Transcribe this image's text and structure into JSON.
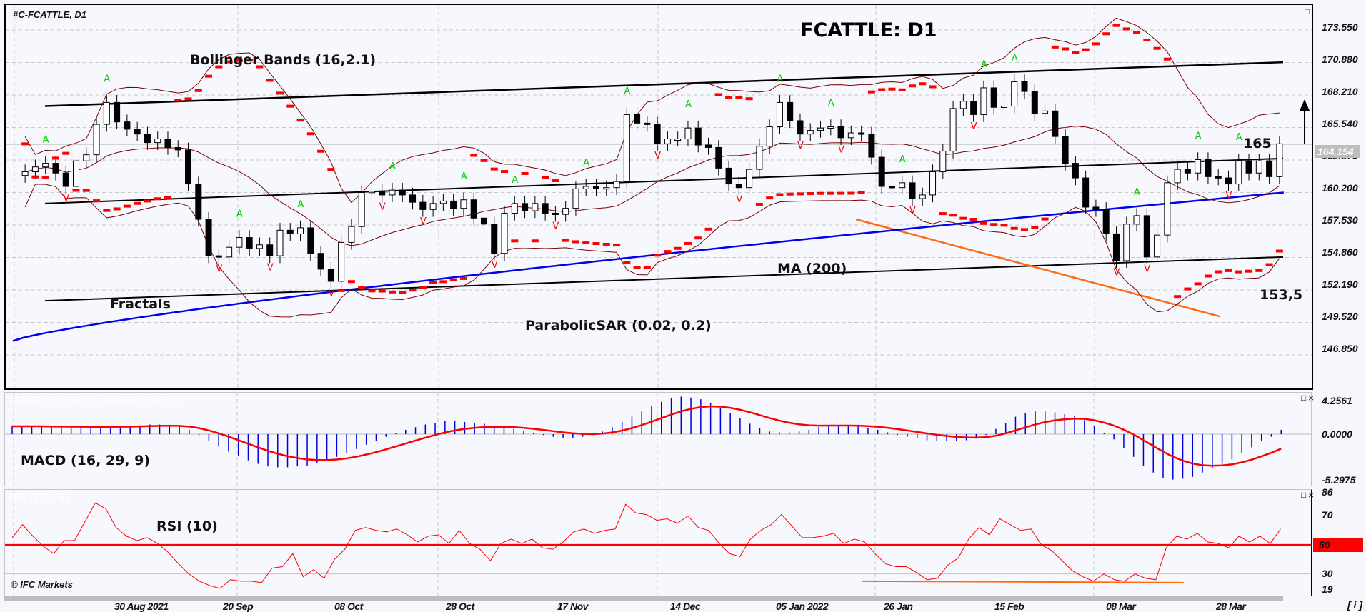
{
  "window": {
    "symbol_label": "#C-FCATTLE, D1",
    "chart_title": "FCATTLE: D1",
    "copyright": "© IFC Markets",
    "info_button": "[ i ]",
    "maximize_icon": "□",
    "close_icon": "×"
  },
  "annotations": {
    "bollinger": "Bollinger Bands (16,2.1)",
    "fractals": "Fractals",
    "parabolic_sar": "ParabolicSAR (0.02, 0.2)",
    "ma": "MA (200)",
    "target_up": "165",
    "support": "153,5",
    "macd": "MACD (16, 29, 9)",
    "rsi": "RSI (10)",
    "macd_ghost": "MACD (12, 26, 9) : 0.4932, -1.4175",
    "rsi_ghost": "RSI (10) : 61"
  },
  "price_axis": {
    "ticks": [
      "173.550",
      "170.880",
      "168.210",
      "165.540",
      "162.870",
      "160.200",
      "157.530",
      "154.860",
      "152.190",
      "149.520",
      "146.850"
    ],
    "current_price": "164.154"
  },
  "macd_axis": {
    "ticks": [
      "4.2561",
      "0.0000",
      "-5.2975"
    ]
  },
  "rsi_axis": {
    "ticks": [
      "86",
      "70",
      "50",
      "30",
      "19"
    ]
  },
  "time_axis": {
    "labels": [
      "30 Aug 2021",
      "20 Sep",
      "08 Oct",
      "28 Oct",
      "17 Nov",
      "14 Dec",
      "05 Jan 2022",
      "26 Jan",
      "15 Feb",
      "08 Mar",
      "28 Mar"
    ]
  },
  "colors": {
    "background": "#f7f8fd",
    "grid": "#c8c8c8",
    "bollinger": "#7a0000",
    "ma200": "#0000ee",
    "sar": "#ff0000",
    "fractal_up": "#00cc00",
    "fractal_down": "#ff0000",
    "trendline": "#000000",
    "orange_line": "#ff6a10",
    "macd_hist": "#0000dd",
    "macd_signal": "#ff0000",
    "rsi_line": "#ff0000"
  },
  "chart_data": [
    {
      "type": "candlestick",
      "title": "FCATTLE: D1",
      "instrument": "#C-FCATTLE",
      "timeframe": "D1",
      "ylim": [
        146.85,
        174.8
      ],
      "yticks": [
        173.55,
        170.88,
        168.21,
        165.54,
        162.87,
        160.2,
        157.53,
        154.86,
        152.19,
        149.52,
        146.85
      ],
      "x_labels": [
        "30 Aug 2021",
        "20 Sep",
        "08 Oct",
        "28 Oct",
        "17 Nov",
        "14 Dec",
        "05 Jan 2022",
        "26 Jan",
        "15 Feb",
        "08 Mar",
        "28 Mar"
      ],
      "last_price": 164.154,
      "closes_approx": [
        161.9,
        162.3,
        162.6,
        161.8,
        160.7,
        162.8,
        163.3,
        165.8,
        167.6,
        166.0,
        165.4,
        165.0,
        164.3,
        164.6,
        163.9,
        163.7,
        160.9,
        158.0,
        155.0,
        154.9,
        155.7,
        156.5,
        155.6,
        155.9,
        155.0,
        157.1,
        156.8,
        157.3,
        155.2,
        153.9,
        152.9,
        156.1,
        157.4,
        160.2,
        160.3,
        160.0,
        160.4,
        160.0,
        159.4,
        158.8,
        159.3,
        159.5,
        158.9,
        159.6,
        158.1,
        157.6,
        155.2,
        158.5,
        159.3,
        158.7,
        159.3,
        158.5,
        158.4,
        158.9,
        160.5,
        160.7,
        160.5,
        160.6,
        161.1,
        166.6,
        165.9,
        165.8,
        164.2,
        164.6,
        164.6,
        165.5,
        164.1,
        163.9,
        162.2,
        160.9,
        160.6,
        162.1,
        164.0,
        165.6,
        167.6,
        166.1,
        165.0,
        165.3,
        165.5,
        165.6,
        164.7,
        165.1,
        165.0,
        163.1,
        160.7,
        160.6,
        161.0,
        159.7,
        160.0,
        161.9,
        163.6,
        167.1,
        167.7,
        166.6,
        168.8,
        167.2,
        167.3,
        169.3,
        168.5,
        166.7,
        166.9,
        164.8,
        162.6,
        161.4,
        159.0,
        158.8,
        156.8,
        154.6,
        157.6,
        158.3,
        154.9,
        156.7,
        161.0,
        162.1,
        161.8,
        162.9,
        161.5,
        161.4,
        160.9,
        162.8,
        161.8,
        162.8,
        161.5,
        164.2
      ],
      "overlays": [
        {
          "name": "Bollinger Bands",
          "params": "16,2.1"
        },
        {
          "name": "MA",
          "params": "200",
          "range": [
            148.0,
            160.2
          ]
        },
        {
          "name": "ParabolicSAR",
          "params": "0.02, 0.2"
        },
        {
          "name": "Fractals"
        }
      ],
      "trendlines": [
        {
          "name": "channel upper",
          "from": 167.3,
          "to": 170.9
        },
        {
          "name": "channel middle",
          "from": 159.3,
          "to": 163.0
        },
        {
          "name": "channel lower",
          "from": 151.3,
          "to": 154.9
        },
        {
          "name": "orange resistance",
          "from": 158.0,
          "to": 150.0
        }
      ],
      "annotations": [
        "165",
        "153,5",
        "up arrow"
      ]
    },
    {
      "type": "bar",
      "title": "MACD (16, 29, 9)",
      "ylim": [
        -5.2975,
        4.2561
      ],
      "yticks": [
        4.2561,
        0.0,
        -5.2975
      ],
      "histogram_approx": [
        0.9,
        0.9,
        0.9,
        0.9,
        0.8,
        0.8,
        0.8,
        0.8,
        0.8,
        0.8,
        0.9,
        0.9,
        0.9,
        1.0,
        1.1,
        1.1,
        1.0,
        0.9,
        0.5,
        -0.1,
        -0.8,
        -1.4,
        -2.0,
        -2.5,
        -3.0,
        -3.4,
        -3.7,
        -3.8,
        -3.8,
        -3.7,
        -3.6,
        -3.3,
        -3.0,
        -2.6,
        -2.2,
        -1.7,
        -1.2,
        -0.8,
        -0.3,
        0.1,
        0.5,
        0.8,
        1.1,
        1.3,
        1.5,
        1.5,
        1.4,
        1.3,
        1.2,
        1.0,
        0.8,
        0.6,
        0.4,
        0.1,
        -0.1,
        -0.3,
        -0.4,
        -0.4,
        -0.3,
        -0.1,
        0.3,
        0.8,
        1.4,
        2.0,
        2.6,
        3.2,
        3.7,
        4.1,
        4.3,
        4.2,
        4.0,
        3.6,
        3.0,
        2.4,
        1.8,
        1.2,
        0.7,
        0.3,
        0.2,
        0.2,
        0.3,
        0.5,
        0.8,
        1.0,
        1.0,
        1.0,
        0.9,
        0.7,
        0.5,
        0.2,
        -0.1,
        -0.3,
        -0.5,
        -0.7,
        -0.8,
        -0.8,
        -0.8,
        -0.7,
        -0.5,
        -0.1,
        0.6,
        1.3,
        2.0,
        2.4,
        2.6,
        2.6,
        2.5,
        2.3,
        2.1,
        1.6,
        0.9,
        0.1,
        -0.6,
        -1.6,
        -2.6,
        -3.6,
        -4.4,
        -5.0,
        -5.2,
        -5.1,
        -4.9,
        -4.4,
        -3.9,
        -3.4,
        -2.9,
        -2.2,
        -1.5,
        -0.8,
        -0.3,
        0.5
      ],
      "signal_approx_range": [
        -3.9,
        2.2
      ]
    },
    {
      "type": "line",
      "title": "RSI (10)",
      "ylim": [
        19,
        86
      ],
      "yticks": [
        86,
        70,
        50,
        30,
        19
      ],
      "reference_line": 50,
      "last_value": 61,
      "values_approx": [
        55,
        64,
        56,
        49,
        44,
        53,
        53,
        66,
        79,
        75,
        62,
        56,
        53,
        55,
        51,
        45,
        37,
        30,
        25,
        22,
        20,
        26,
        25,
        25,
        24,
        34,
        35,
        44,
        28,
        33,
        27,
        40,
        47,
        60,
        62,
        60,
        59,
        61,
        57,
        52,
        56,
        57,
        51,
        60,
        51,
        47,
        39,
        51,
        54,
        51,
        54,
        48,
        47,
        52,
        59,
        61,
        58,
        60,
        61,
        78,
        72,
        71,
        67,
        68,
        65,
        70,
        62,
        60,
        51,
        44,
        42,
        54,
        60,
        64,
        71,
        63,
        55,
        55,
        56,
        58,
        51,
        54,
        52,
        44,
        37,
        35,
        35,
        31,
        26,
        27,
        36,
        41,
        54,
        62,
        57,
        68,
        64,
        60,
        61,
        50,
        46,
        39,
        32,
        28,
        25,
        30,
        26,
        25,
        30,
        27,
        26,
        48,
        56,
        54,
        58,
        52,
        51,
        48,
        56,
        52,
        56,
        51,
        61
      ]
    }
  ]
}
